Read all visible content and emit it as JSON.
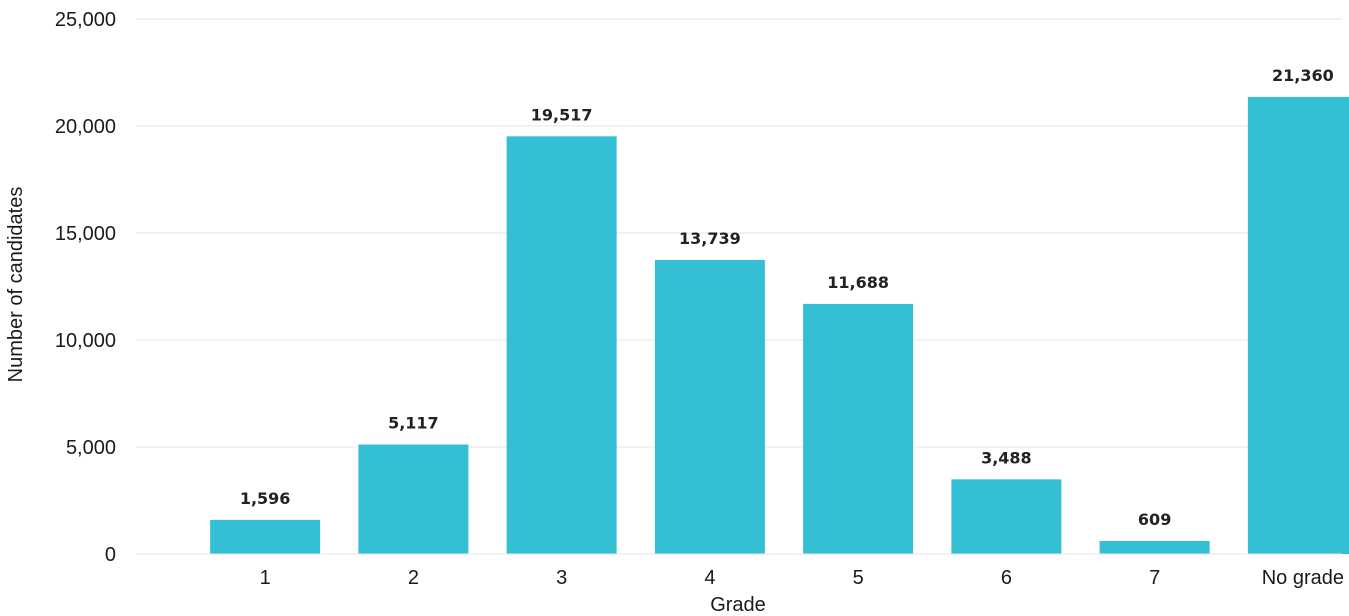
{
  "chart_data": {
    "type": "bar",
    "categories": [
      "1",
      "2",
      "3",
      "4",
      "5",
      "6",
      "7",
      "No grade"
    ],
    "values": [
      1596,
      5117,
      19517,
      13739,
      11688,
      3488,
      609,
      21360
    ],
    "data_labels": [
      "1,596",
      "5,117",
      "19,517",
      "13,739",
      "11,688",
      "3,488",
      "609",
      "21,360"
    ],
    "title": "",
    "xlabel": "Grade",
    "ylabel": "Number of candidates",
    "ylim": [
      0,
      25000
    ],
    "yticks": [
      0,
      5000,
      10000,
      15000,
      20000,
      25000
    ],
    "ytick_labels": [
      "0",
      "5,000",
      "10,000",
      "15,000",
      "20,000",
      "25,000"
    ],
    "grid": true,
    "legend": "none",
    "bar_color": "#33c0d4"
  }
}
